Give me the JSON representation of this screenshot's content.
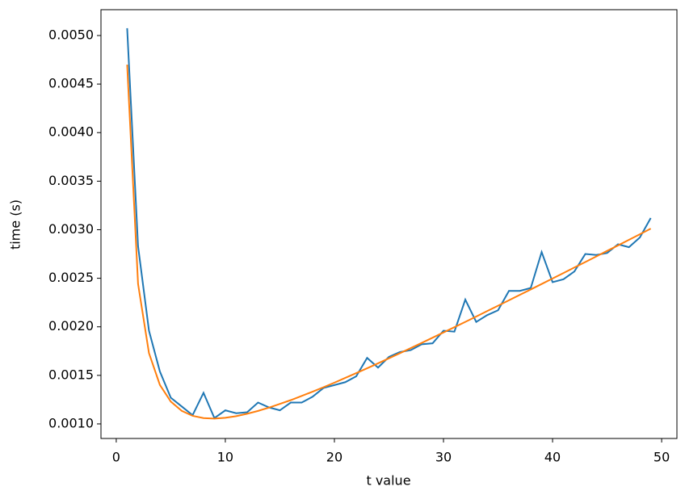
{
  "chart_data": {
    "type": "line",
    "xlabel": "t value",
    "ylabel": "time (s)",
    "x": [
      1,
      2,
      3,
      4,
      5,
      6,
      7,
      8,
      9,
      10,
      11,
      12,
      13,
      14,
      15,
      16,
      17,
      18,
      19,
      20,
      21,
      22,
      23,
      24,
      25,
      26,
      27,
      28,
      29,
      30,
      31,
      32,
      33,
      34,
      35,
      36,
      37,
      38,
      39,
      40,
      41,
      42,
      43,
      44,
      45,
      46,
      47,
      48,
      49
    ],
    "series": [
      {
        "color": "#1f77b4",
        "values": [
          0.005075,
          0.00283,
          0.00196,
          0.00154,
          0.00127,
          0.00118,
          0.00109,
          0.00132,
          0.00106,
          0.00114,
          0.00111,
          0.00112,
          0.00122,
          0.00117,
          0.00114,
          0.00122,
          0.00122,
          0.00128,
          0.00137,
          0.0014,
          0.00143,
          0.00149,
          0.00168,
          0.00158,
          0.00169,
          0.00174,
          0.00176,
          0.00182,
          0.00183,
          0.00196,
          0.00195,
          0.00228,
          0.00205,
          0.00212,
          0.00217,
          0.00237,
          0.00237,
          0.0024,
          0.00277,
          0.00246,
          0.00249,
          0.00257,
          0.00275,
          0.00274,
          0.00276,
          0.00285,
          0.00282,
          0.00292,
          0.00312
        ]
      },
      {
        "color": "#ff7f0e",
        "values": [
          0.0047,
          0.002442,
          0.001729,
          0.001402,
          0.00123,
          0.001135,
          0.001083,
          0.00106,
          0.001055,
          0.001063,
          0.00108,
          0.001105,
          0.001134,
          0.001168,
          0.001206,
          0.001245,
          0.001288,
          0.001332,
          0.001378,
          0.001425,
          0.001474,
          0.001523,
          0.001573,
          0.001624,
          0.001676,
          0.001728,
          0.001781,
          0.001834,
          0.001888,
          0.001942,
          0.001996,
          0.002051,
          0.002106,
          0.002162,
          0.002217,
          0.002273,
          0.002329,
          0.002385,
          0.002441,
          0.002498,
          0.002554,
          0.002611,
          0.002667,
          0.002724,
          0.002782,
          0.002838,
          0.002896,
          0.002953,
          0.003011
        ]
      }
    ],
    "xlim": [
      -1.4,
      51.4
    ],
    "xticks": [
      0,
      10,
      20,
      30,
      40,
      50
    ],
    "ylim": [
      0.00085,
      0.005266
    ],
    "yticks": [
      {
        "value": 0.001,
        "label": "0.0010"
      },
      {
        "value": 0.0015,
        "label": "0.0015"
      },
      {
        "value": 0.002,
        "label": "0.0020"
      },
      {
        "value": 0.0025,
        "label": "0.0025"
      },
      {
        "value": 0.003,
        "label": "0.0030"
      },
      {
        "value": 0.0035,
        "label": "0.0035"
      },
      {
        "value": 0.004,
        "label": "0.0040"
      },
      {
        "value": 0.0045,
        "label": "0.0045"
      },
      {
        "value": 0.005,
        "label": "0.0050"
      }
    ],
    "grid": false
  }
}
